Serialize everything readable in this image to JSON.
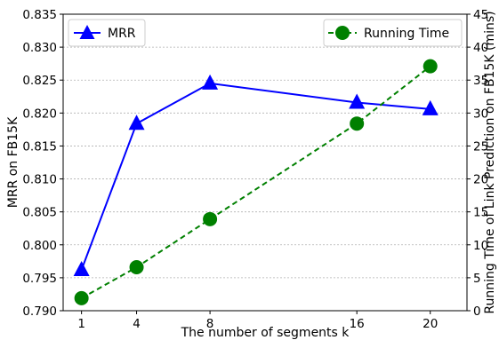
{
  "chart_data": {
    "type": "line",
    "title": "",
    "xlabel": "The number of segments k",
    "ylabel": "MRR on FB15K",
    "y2label": "Running Time of Link Prediction on FB15K (mins)",
    "x": [
      1,
      4,
      8,
      16,
      20
    ],
    "xticks": [
      "1",
      "4",
      "8",
      "16",
      "20"
    ],
    "xlim": [
      0,
      22
    ],
    "ylim": [
      0.79,
      0.835
    ],
    "y2lim": [
      0,
      45
    ],
    "yticks": [
      "0.790",
      "0.795",
      "0.800",
      "0.805",
      "0.810",
      "0.815",
      "0.820",
      "0.825",
      "0.830",
      "0.835"
    ],
    "y2ticks": [
      "0",
      "5",
      "10",
      "15",
      "20",
      "25",
      "30",
      "35",
      "40",
      "45"
    ],
    "grid": "horizontal",
    "series": [
      {
        "name": "MRR",
        "axis": "left",
        "values": [
          0.7962,
          0.8184,
          0.8245,
          0.8216,
          0.8206
        ],
        "color": "#0000ff",
        "marker": "triangle",
        "line": "solid",
        "legend_position": "top-left"
      },
      {
        "name": "Running Time",
        "axis": "right",
        "values": [
          1.9,
          6.6,
          13.9,
          28.4,
          37.1
        ],
        "color": "#008000",
        "marker": "circle",
        "line": "dashed",
        "legend_position": "top-right"
      }
    ]
  }
}
